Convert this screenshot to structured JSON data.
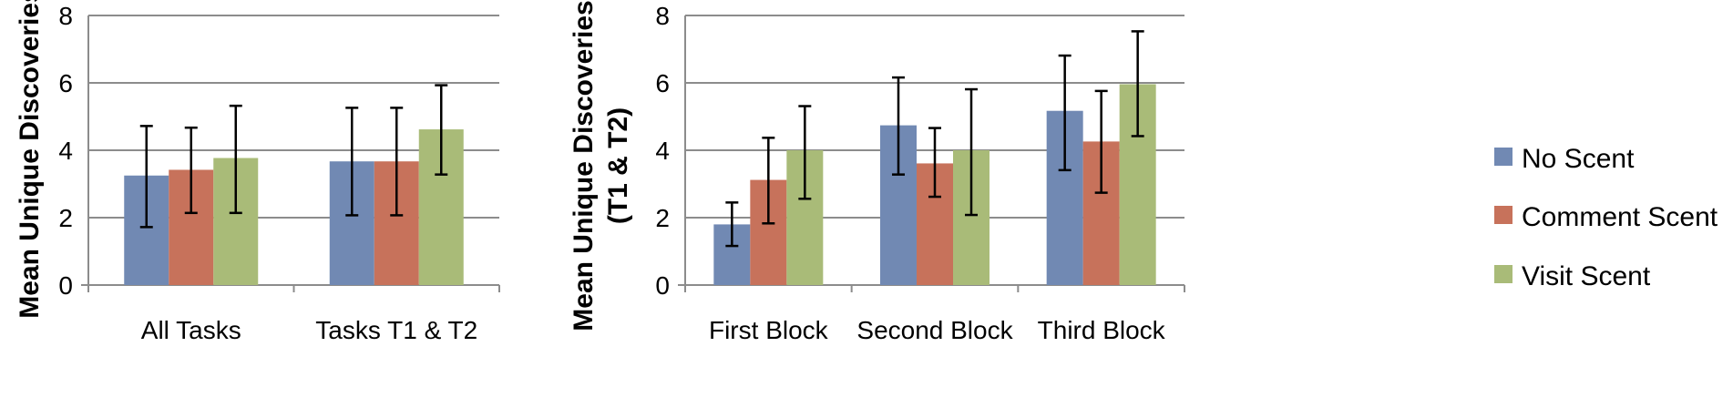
{
  "chart_data": [
    {
      "type": "bar",
      "ylabel": "Mean Unique Discoveries",
      "ylim": [
        0,
        8
      ],
      "yticks": [
        "0",
        "2",
        "4",
        "6",
        "8"
      ],
      "grid": true,
      "categories": [
        "All Tasks",
        "Tasks T1  & T2"
      ],
      "series": [
        {
          "name": "No Scent",
          "values": [
            3.25,
            3.67
          ],
          "err_high": [
            4.72,
            5.26
          ],
          "err_low": [
            1.72,
            2.07
          ]
        },
        {
          "name": "Comment Scent",
          "values": [
            3.42,
            3.67
          ],
          "err_high": [
            4.67,
            5.26
          ],
          "err_low": [
            2.14,
            2.07
          ]
        },
        {
          "name": "Visit Scent",
          "values": [
            3.77,
            4.62
          ],
          "err_high": [
            5.32,
            5.93
          ],
          "err_low": [
            2.14,
            3.28
          ]
        }
      ]
    },
    {
      "type": "bar",
      "ylabel": [
        "Mean Unique Discoveries",
        "(T1 & T2)"
      ],
      "ylim": [
        0,
        8
      ],
      "yticks": [
        "0",
        "2",
        "4",
        "6",
        "8"
      ],
      "grid": true,
      "legend_position": "right",
      "categories": [
        "First Block",
        "Second Block",
        "Third Block"
      ],
      "series": [
        {
          "name": "No Scent",
          "values": [
            1.8,
            4.74,
            5.17
          ],
          "err_high": [
            2.45,
            6.16,
            6.81
          ],
          "err_low": [
            1.16,
            3.28,
            3.41
          ]
        },
        {
          "name": "Comment Scent",
          "values": [
            3.12,
            3.61,
            4.26
          ],
          "err_high": [
            4.37,
            4.66,
            5.76
          ],
          "err_low": [
            1.83,
            2.62,
            2.74
          ]
        },
        {
          "name": "Visit Scent",
          "values": [
            4.0,
            4.0,
            5.96
          ],
          "err_high": [
            5.31,
            5.81,
            7.53
          ],
          "err_low": [
            2.56,
            2.08,
            4.42
          ]
        }
      ]
    }
  ],
  "legend": {
    "items": [
      {
        "label": "No Scent",
        "color": "#7189B3"
      },
      {
        "label": "Comment Scent",
        "color": "#C7725B"
      },
      {
        "label": "Visit Scent",
        "color": "#A9BB78"
      }
    ]
  }
}
